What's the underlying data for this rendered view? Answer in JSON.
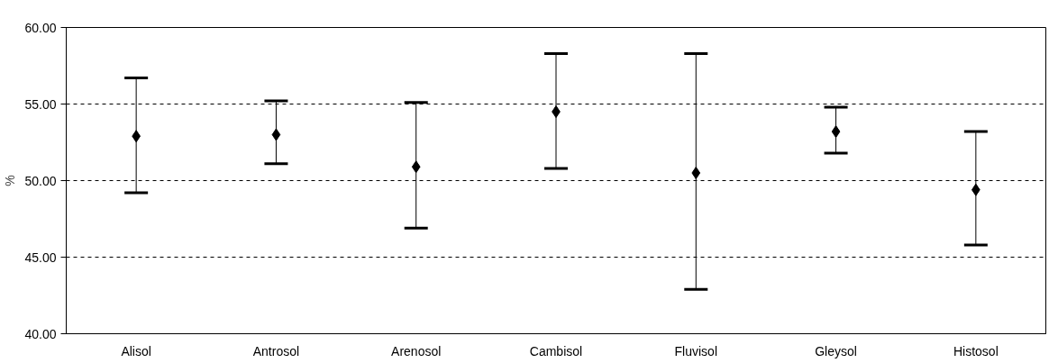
{
  "chart_data": {
    "type": "scatter",
    "ylabel": "%",
    "categories": [
      "Alisol",
      "Antrosol",
      "Arenosol",
      "Cambisol",
      "Fluvisol",
      "Gleysol",
      "Histosol"
    ],
    "series": [
      {
        "color": "#000000",
        "marker": "diamond",
        "values": [
          52.9,
          53.0,
          50.9,
          54.5,
          50.5,
          53.2,
          49.4
        ],
        "errors": [
          [
            49.2,
            56.7
          ],
          [
            51.1,
            55.2
          ],
          [
            46.9,
            55.1
          ],
          [
            50.8,
            58.3
          ],
          [
            42.9,
            58.3
          ],
          [
            51.8,
            54.8
          ],
          [
            45.8,
            53.2
          ]
        ]
      }
    ],
    "ylim": [
      40,
      60
    ],
    "yticks": [
      {
        "value": 40,
        "label": "40.00"
      },
      {
        "value": 45,
        "label": "45.00"
      },
      {
        "value": 50,
        "label": "50.00"
      },
      {
        "value": 55,
        "label": "55.00"
      },
      {
        "value": 60,
        "label": "60.00"
      }
    ],
    "grid": "y"
  }
}
